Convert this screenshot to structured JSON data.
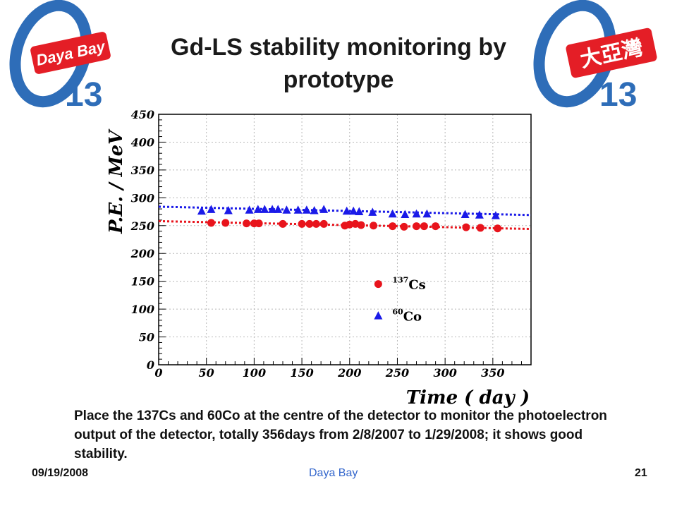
{
  "slide": {
    "title": "Gd-LS stability monitoring by prototype",
    "caption": "Place the 137Cs and 60Co at the centre of the detector to monitor the photoelectron output of the detector, totally 356days from 2/8/2007 to 1/29/2008; it shows good stability.",
    "footer": {
      "date": "09/19/2008",
      "center": "Daya Bay",
      "page": "21"
    }
  },
  "logos": {
    "left": {
      "text": "Daya Bay",
      "number": "13"
    },
    "right": {
      "text": "大亞灣",
      "number": "13"
    }
  },
  "colors": {
    "cs": "#e8141c",
    "co": "#1a1ae8",
    "logo_blue": "#2e6db8",
    "logo_red": "#e41e26",
    "footer_center": "#3366cc"
  },
  "chart_data": {
    "type": "scatter",
    "xlabel": "Time ( day )",
    "ylabel": "P.E. / MeV",
    "xlim": [
      0,
      390
    ],
    "ylim": [
      0,
      450
    ],
    "xticks": [
      0,
      50,
      100,
      150,
      200,
      250,
      300,
      350
    ],
    "yticks": [
      0,
      50,
      100,
      150,
      200,
      250,
      300,
      350,
      400,
      450
    ],
    "grid": true,
    "legend_position": "center-right",
    "series": [
      {
        "name": "137Cs",
        "legend_sup": "137",
        "legend_base": "Cs",
        "marker": "circle",
        "color": "#e8141c",
        "x": [
          55,
          70,
          92,
          100,
          105,
          130,
          150,
          158,
          165,
          173,
          195,
          200,
          206,
          212,
          225,
          245,
          257,
          270,
          278,
          290,
          322,
          337,
          355
        ],
        "y": [
          255,
          255,
          254,
          254,
          254,
          253,
          253,
          253,
          253,
          253,
          250,
          252,
          253,
          251,
          250,
          249,
          248,
          249,
          249,
          249,
          247,
          246,
          245
        ],
        "fit": {
          "x": [
            0,
            390
          ],
          "y": [
            258,
            244
          ]
        }
      },
      {
        "name": "60Co",
        "legend_sup": "60",
        "legend_base": "Co",
        "marker": "triangle",
        "color": "#1a1ae8",
        "x": [
          45,
          55,
          73,
          95,
          104,
          111,
          119,
          125,
          134,
          146,
          155,
          163,
          173,
          197,
          204,
          210,
          224,
          245,
          258,
          270,
          281,
          321,
          336,
          353
        ],
        "y": [
          276,
          279,
          277,
          278,
          279,
          279,
          279,
          279,
          278,
          278,
          278,
          277,
          279,
          276,
          276,
          275,
          274,
          271,
          270,
          271,
          271,
          270,
          269,
          268
        ],
        "fit": {
          "x": [
            0,
            390
          ],
          "y": [
            284,
            269
          ]
        }
      }
    ]
  }
}
